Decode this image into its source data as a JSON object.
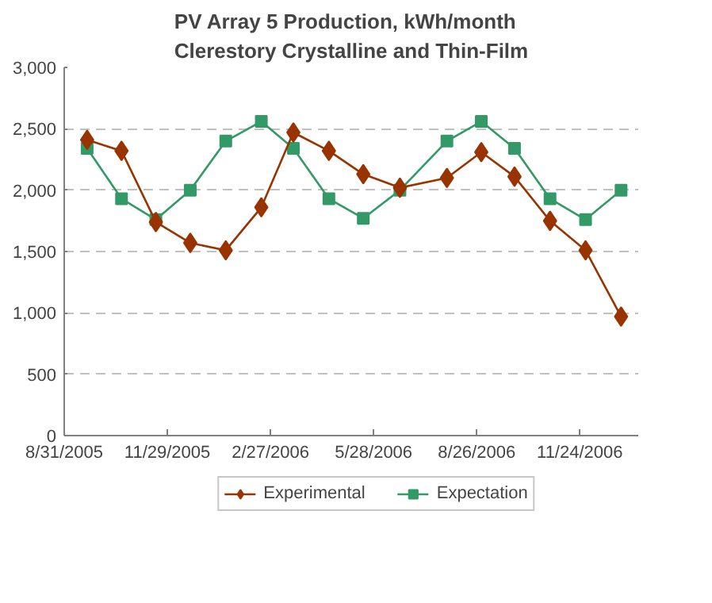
{
  "chart_data": {
    "type": "line",
    "title": "PV Array 5 Production, kWh/month",
    "subtitle": "Clerestory Crystalline and Thin-Film",
    "x": [
      "2005-09-20",
      "2005-10-20",
      "2005-11-19",
      "2005-12-19",
      "2006-01-19",
      "2006-02-19",
      "2006-03-19",
      "2006-04-19",
      "2006-05-19",
      "2006-06-20",
      "2006-07-31",
      "2006-08-30",
      "2006-09-28",
      "2006-10-29",
      "2006-11-29",
      "2006-12-30"
    ],
    "series": [
      {
        "name": "Experimental",
        "color": "#993300",
        "marker": "diamond",
        "values": [
          2410,
          2320,
          1740,
          1570,
          1510,
          1860,
          2470,
          2320,
          2130,
          2020,
          2100,
          2310,
          2110,
          1750,
          1510,
          970
        ]
      },
      {
        "name": "Expectation",
        "color": "#339966",
        "marker": "square",
        "values": [
          2340,
          1930,
          1760,
          2000,
          2400,
          2560,
          2340,
          1930,
          1770,
          2000,
          2400,
          2560,
          2340,
          1930,
          1760,
          2000
        ]
      }
    ],
    "xlim": [
      "2005-08-31",
      "2007-01-14"
    ],
    "xticks": [
      {
        "value": "2005-08-31",
        "label": "8/31/2005"
      },
      {
        "value": "2005-11-29",
        "label": "11/29/2005"
      },
      {
        "value": "2006-02-27",
        "label": "2/27/2006"
      },
      {
        "value": "2006-05-28",
        "label": "5/28/2006"
      },
      {
        "value": "2006-08-26",
        "label": "8/26/2006"
      },
      {
        "value": "2006-11-24",
        "label": "11/24/2006"
      }
    ],
    "ylim": [
      0,
      3000
    ],
    "yticks": [
      {
        "value": 0,
        "label": "0"
      },
      {
        "value": 500,
        "label": "500"
      },
      {
        "value": 1000,
        "label": "1,000"
      },
      {
        "value": 1500,
        "label": "1,500"
      },
      {
        "value": 2000,
        "label": "2,000"
      },
      {
        "value": 2500,
        "label": "2,500"
      },
      {
        "value": 3000,
        "label": "3,000"
      }
    ],
    "grid": "y",
    "legend": "bottom",
    "line_style": "solid"
  }
}
